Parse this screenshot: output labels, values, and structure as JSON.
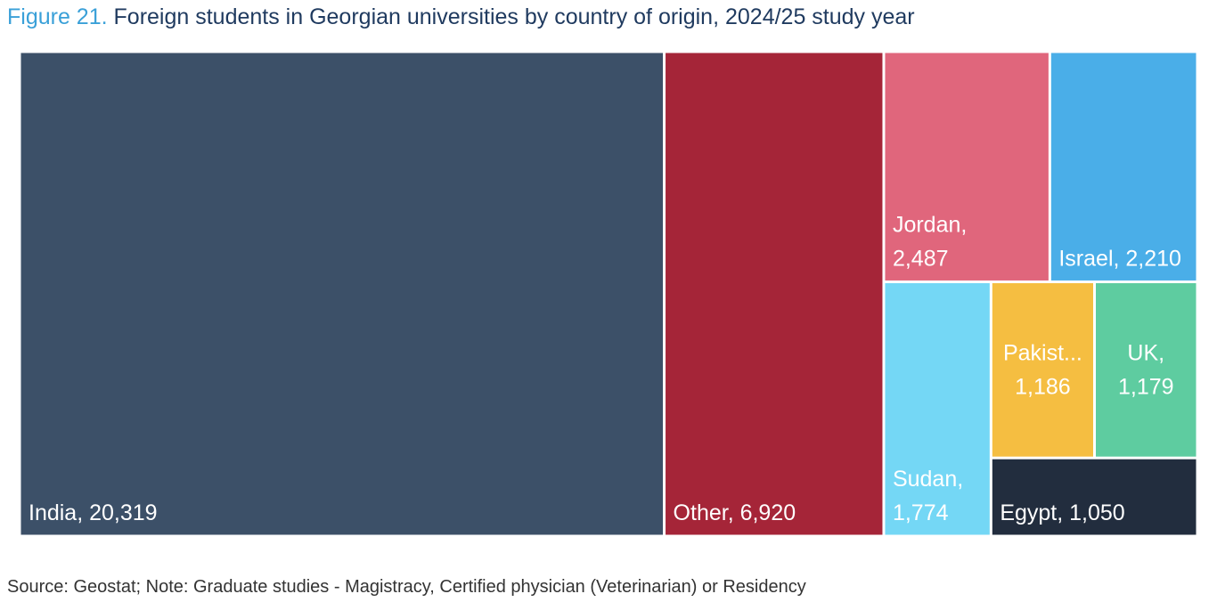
{
  "title": {
    "figure_label": "Figure 21.",
    "text": "Foreign students in Georgian universities by country of origin, 2024/25 study year"
  },
  "source_note": "Source: Geostat; Note: Graduate studies - Magistracy, Certified physician (Veterinarian) or Residency",
  "chart_data": {
    "type": "treemap",
    "items": [
      {
        "name": "India",
        "value": 20319,
        "label_lines": [
          "India,  20,319"
        ],
        "color": "#3c5068",
        "text_color": "#ffffff"
      },
      {
        "name": "Other",
        "value": 6920,
        "label_lines": [
          "Other,  6,920"
        ],
        "color": "#a52538",
        "text_color": "#ffffff"
      },
      {
        "name": "Jordan",
        "value": 2487,
        "label_lines": [
          "Jordan,",
          "2,487"
        ],
        "color": "#e0667c",
        "text_color": "#ffffff"
      },
      {
        "name": "Israel",
        "value": 2210,
        "label_lines": [
          "Israel,  2,210"
        ],
        "color": "#4aaee8",
        "text_color": "#ffffff"
      },
      {
        "name": "Sudan",
        "value": 1774,
        "label_lines": [
          "Sudan,",
          "1,774"
        ],
        "color": "#74d7f5",
        "text_color": "#ffffff"
      },
      {
        "name": "Pakistan",
        "value": 1186,
        "label_lines": [
          "Pakist...",
          "1,186"
        ],
        "color": "#f5be41",
        "text_color": "#ffffff"
      },
      {
        "name": "UK",
        "value": 1179,
        "label_lines": [
          "UK,",
          "1,179"
        ],
        "color": "#5ecca0",
        "text_color": "#ffffff"
      },
      {
        "name": "Egypt",
        "value": 1050,
        "label_lines": [
          "Egypt,  1,050"
        ],
        "color": "#222d3e",
        "text_color": "#ffffff"
      }
    ]
  }
}
